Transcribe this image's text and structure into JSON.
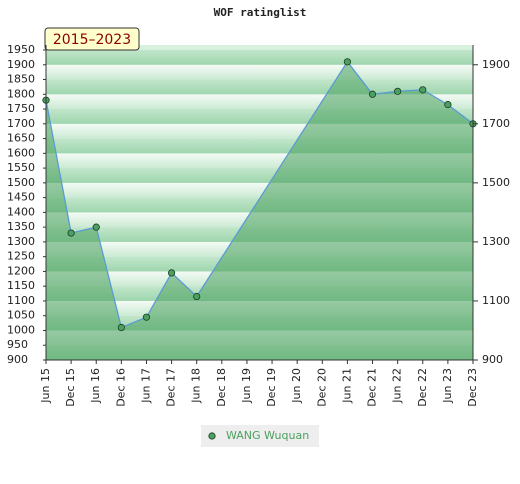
{
  "chart_data": {
    "type": "line",
    "title": "WOF ratinglist",
    "annotation": "2015–2023",
    "categories": [
      "Jun 15",
      "Dec 15",
      "Jun 16",
      "Dec 16",
      "Jun 17",
      "Dec 17",
      "Jun 18",
      "Dec 18",
      "Jun 19",
      "Dec 19",
      "Jun 20",
      "Dec 20",
      "Jun 21",
      "Dec 21",
      "Jun 22",
      "Dec 22",
      "Jun 23",
      "Dec 23"
    ],
    "series": [
      {
        "name": "WANG Wuquan",
        "color": "#4aa05e",
        "x": [
          "Jun 15",
          "Dec 15",
          "Jun 16",
          "Dec 16",
          "Jun 17",
          "Dec 17",
          "Jun 18",
          "Jun 21",
          "Dec 21",
          "Jun 22",
          "Dec 22",
          "Jun 23",
          "Dec 23"
        ],
        "values": [
          1780,
          1330,
          1350,
          1010,
          1045,
          1195,
          1115,
          1910,
          1800,
          1810,
          1815,
          1765,
          1700
        ]
      }
    ],
    "ylim": [
      900,
      1950
    ],
    "yticks": [
      900,
      950,
      1000,
      1050,
      1100,
      1150,
      1200,
      1250,
      1300,
      1350,
      1400,
      1450,
      1500,
      1550,
      1600,
      1650,
      1700,
      1750,
      1800,
      1850,
      1900,
      1950
    ],
    "y2lim": [
      900,
      1950
    ],
    "y2ticks": [
      900,
      1100,
      1300,
      1500,
      1700,
      1900
    ]
  }
}
